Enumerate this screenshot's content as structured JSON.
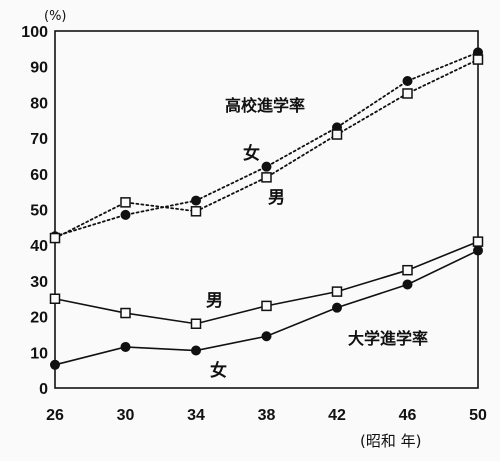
{
  "chart_data": {
    "type": "line",
    "y_unit": "(%)",
    "x_unit": "(昭和 年)",
    "categories": [
      26,
      30,
      34,
      38,
      42,
      46,
      50
    ],
    "ylim": [
      0,
      100
    ],
    "y_ticks": [
      0,
      10,
      20,
      30,
      40,
      50,
      60,
      70,
      80,
      90,
      100
    ],
    "grid": true,
    "series": [
      {
        "group": "高校進学率",
        "name": "女",
        "marker": "filled-circle",
        "line": "dotted",
        "values": [
          42.5,
          48.5,
          52.5,
          62,
          73,
          86,
          94
        ]
      },
      {
        "group": "高校進学率",
        "name": "男",
        "marker": "open-square",
        "line": "dotted",
        "values": [
          42,
          52,
          49.5,
          59,
          71,
          82.5,
          92
        ]
      },
      {
        "group": "大学進学率",
        "name": "男",
        "marker": "open-square",
        "line": "solid",
        "values": [
          25,
          21,
          18,
          23,
          27,
          33,
          41
        ]
      },
      {
        "group": "大学進学率",
        "name": "女",
        "marker": "filled-circle",
        "line": "solid",
        "values": [
          6.5,
          11.5,
          10.5,
          14.5,
          22.5,
          29,
          38.5
        ]
      }
    ],
    "annotations": {
      "high_school": "高校進学率",
      "high_school_female": "女",
      "high_school_male": "男",
      "university": "大学進学率",
      "university_male": "男",
      "university_female": "女"
    }
  }
}
